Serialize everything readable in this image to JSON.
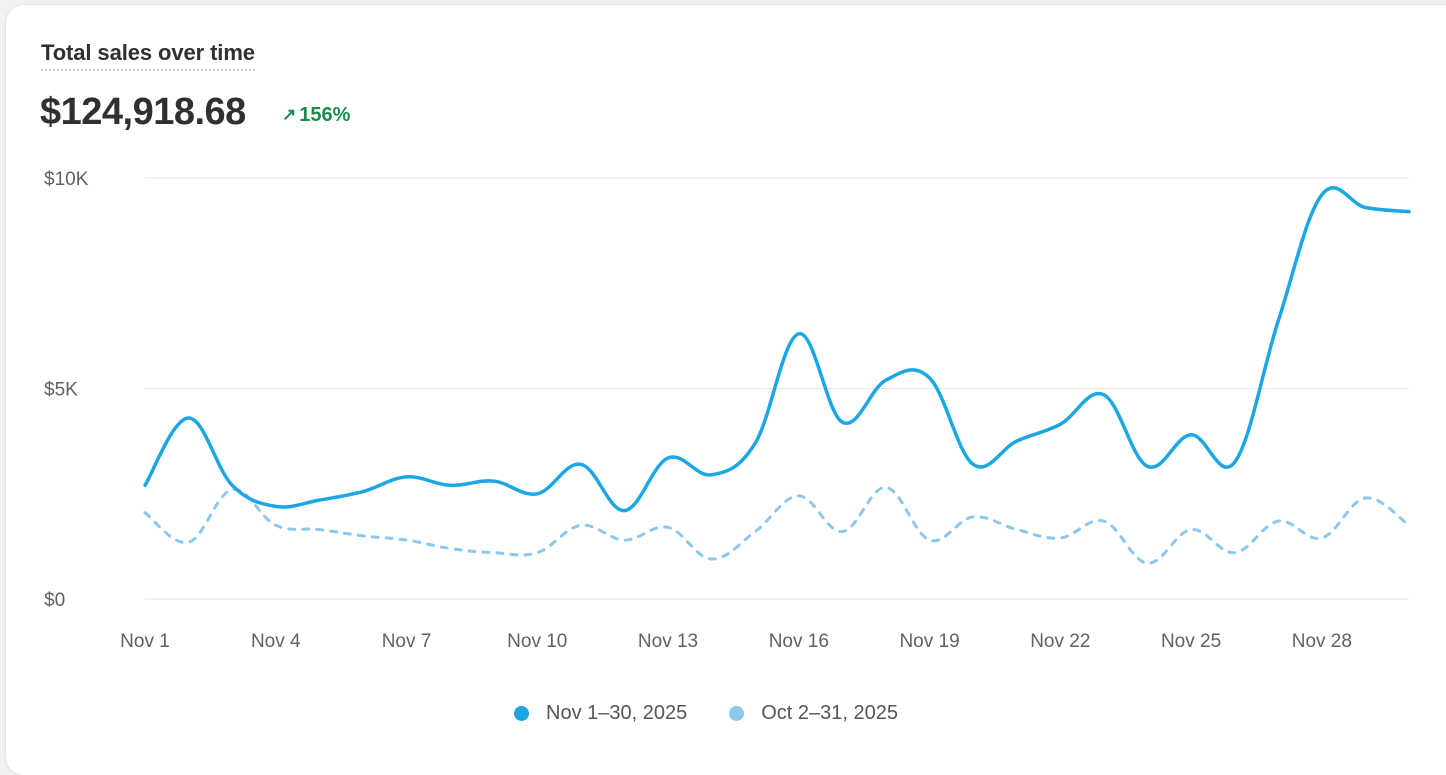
{
  "header": {
    "title": "Total sales over time",
    "total": "$124,918.68",
    "change": "156%",
    "change_icon": "arrow-up-right-icon"
  },
  "colors": {
    "current": "#1aa7e3",
    "previous": "#8cc8ec",
    "positive": "#1a8a4a"
  },
  "chart_data": {
    "type": "line",
    "ylim": [
      0,
      10000
    ],
    "y_ticks": [
      "$0",
      "$5K",
      "$10K"
    ],
    "y_tick_values": [
      0,
      5000,
      10000
    ],
    "x": [
      1,
      2,
      3,
      4,
      5,
      6,
      7,
      8,
      9,
      10,
      11,
      12,
      13,
      14,
      15,
      16,
      17,
      18,
      19,
      20,
      21,
      22,
      23,
      24,
      25,
      26,
      27,
      28,
      29,
      30
    ],
    "x_tick_labels": [
      "Nov 1",
      "Nov 4",
      "Nov 7",
      "Nov 10",
      "Nov 13",
      "Nov 16",
      "Nov 19",
      "Nov 22",
      "Nov 25",
      "Nov 28"
    ],
    "x_tick_days": [
      1,
      4,
      7,
      10,
      13,
      16,
      19,
      22,
      25,
      28
    ],
    "grid": true,
    "legend": "bottom-center",
    "series": [
      {
        "name": "Nov 1–30, 2025",
        "style": "solid",
        "values": [
          2700,
          4300,
          2700,
          2200,
          2350,
          2550,
          2900,
          2700,
          2800,
          2500,
          3200,
          2100,
          3350,
          2950,
          3700,
          6300,
          4200,
          5200,
          5250,
          3200,
          3750,
          4150,
          4850,
          3150,
          3900,
          3250,
          6600,
          9600,
          9300,
          9200
        ]
      },
      {
        "name": "Oct 2–31, 2025",
        "style": "dashed",
        "values": [
          2050,
          1350,
          2600,
          1750,
          1650,
          1500,
          1400,
          1200,
          1100,
          1100,
          1750,
          1400,
          1700,
          950,
          1600,
          2450,
          1600,
          2650,
          1400,
          1950,
          1650,
          1450,
          1850,
          850,
          1650,
          1100,
          1850,
          1450,
          2400,
          1750
        ]
      }
    ]
  }
}
